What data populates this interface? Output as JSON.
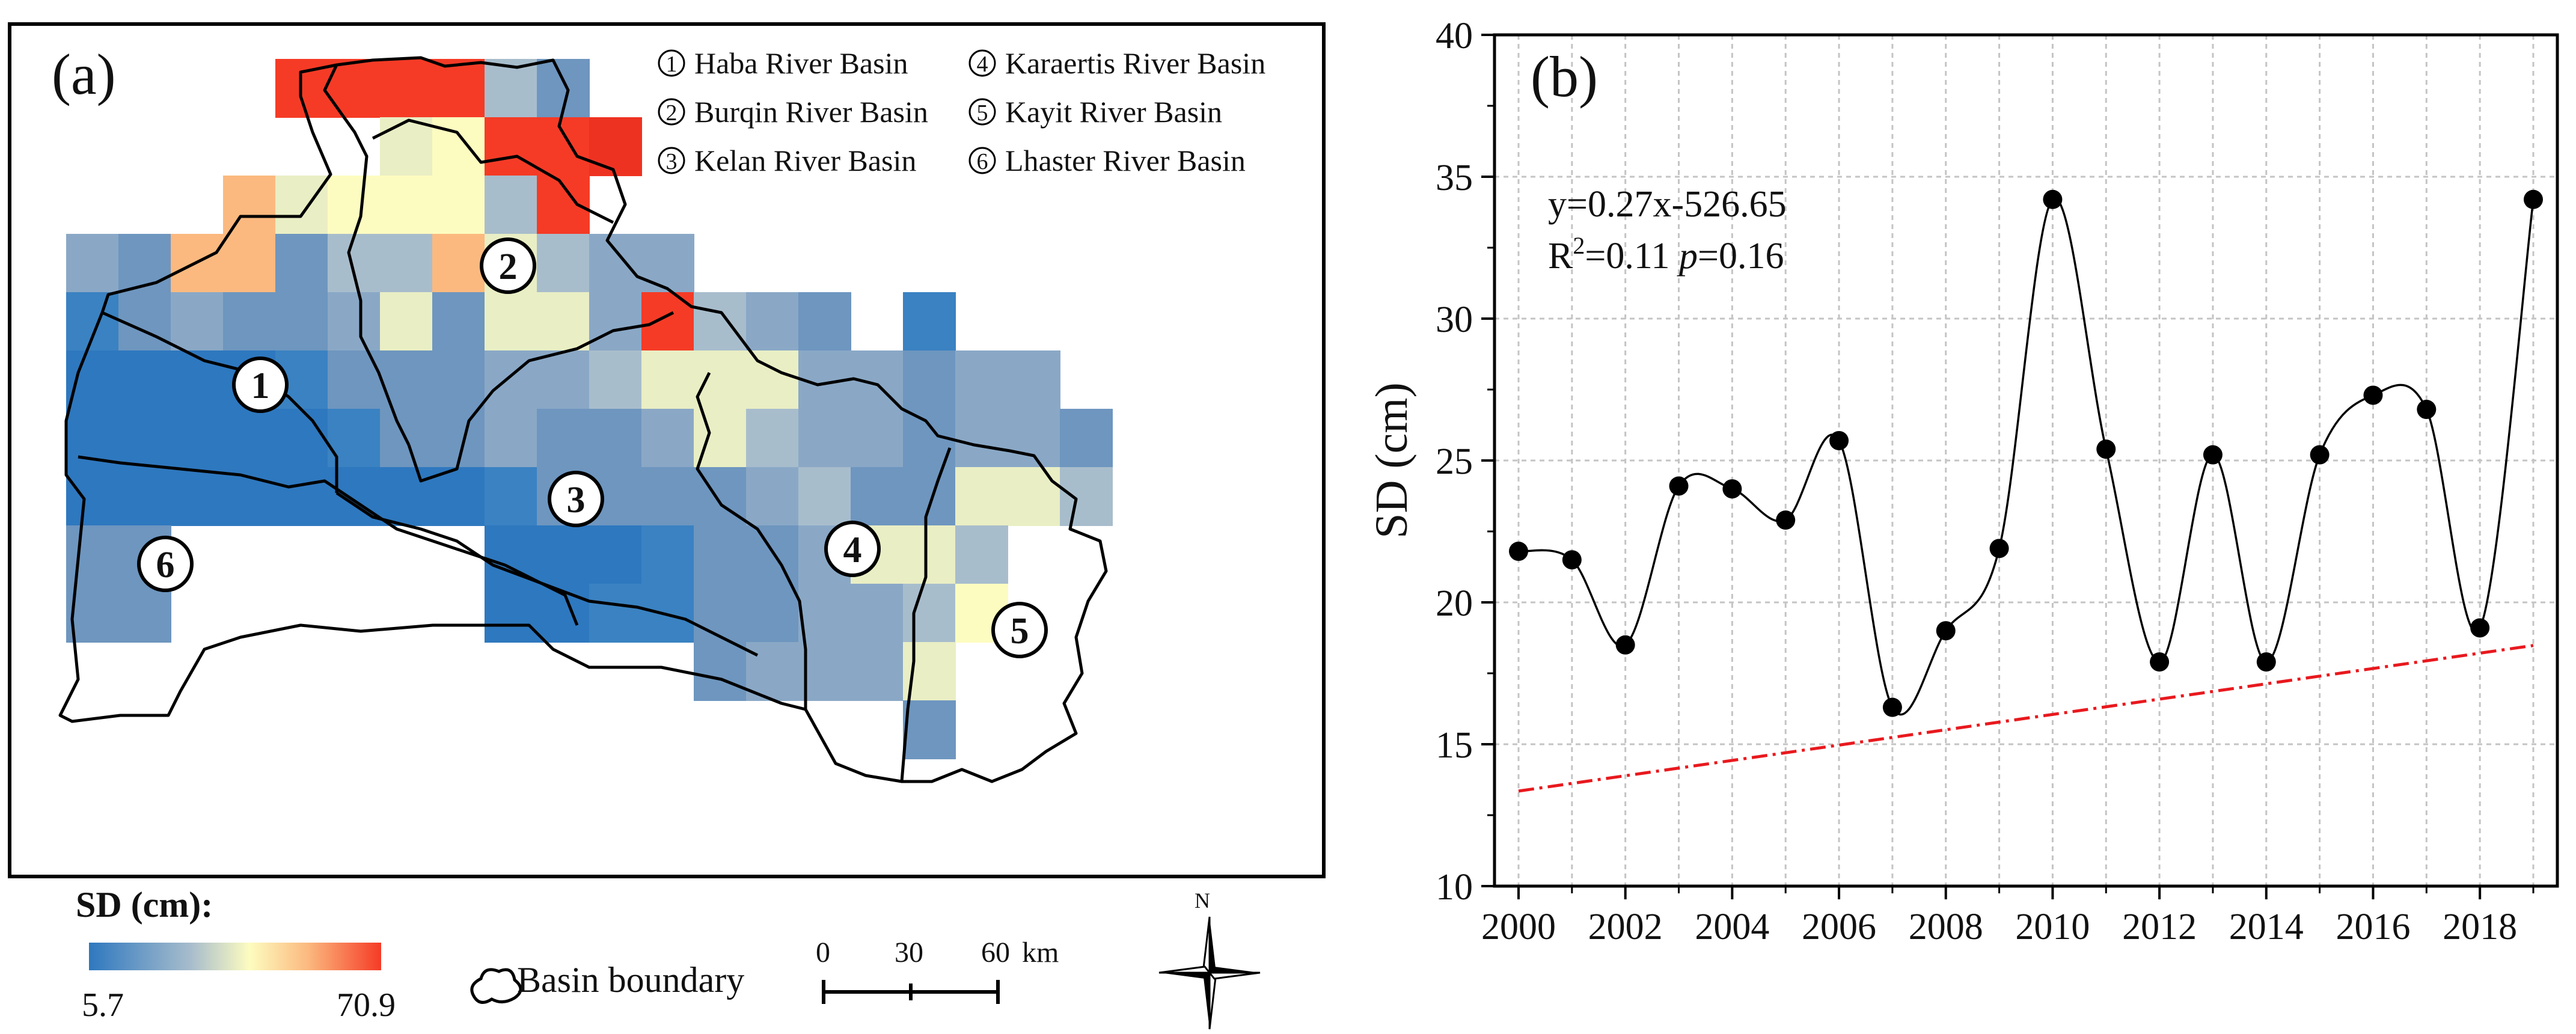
{
  "panel_a": {
    "label": "(a)",
    "legend": [
      {
        "num": "1",
        "name": "Haba River Basin"
      },
      {
        "num": "2",
        "name": "Burqin River Basin"
      },
      {
        "num": "3",
        "name": "Kelan River Basin"
      },
      {
        "num": "4",
        "name": "Karaertis River Basin"
      },
      {
        "num": "5",
        "name": "Kayit River Basin"
      },
      {
        "num": "6",
        "name": "Lhaster River Basin"
      }
    ],
    "colorbar": {
      "title": "SD (cm):",
      "min": "5.7",
      "max": "70.9",
      "colors": [
        "#2e78bf",
        "#a8bdcc",
        "#fdfcc0",
        "#fbb97f",
        "#f53b26"
      ]
    },
    "boundary_label": "Basin boundary",
    "scale": {
      "ticks": [
        "0",
        "30",
        "60"
      ],
      "unit": "km"
    },
    "north": "N"
  },
  "chart_data": {
    "type": "line",
    "panel_label": "(b)",
    "title": "",
    "xlabel": "",
    "ylabel": "SD (cm)",
    "x": [
      2000,
      2001,
      2002,
      2003,
      2004,
      2005,
      2006,
      2007,
      2008,
      2009,
      2010,
      2011,
      2012,
      2013,
      2014,
      2015,
      2016,
      2017,
      2018,
      2019
    ],
    "values": [
      21.8,
      21.5,
      18.5,
      24.1,
      24.0,
      22.9,
      25.7,
      16.3,
      19.0,
      21.9,
      34.2,
      25.4,
      17.9,
      25.2,
      17.9,
      25.2,
      27.3,
      26.8,
      19.1,
      34.2
    ],
    "xlim": [
      2000,
      2019
    ],
    "ylim": [
      10,
      40
    ],
    "xticks": [
      "2000",
      "2002",
      "2004",
      "2006",
      "2008",
      "2010",
      "2012",
      "2014",
      "2016",
      "2018"
    ],
    "yticks": [
      "10",
      "15",
      "20",
      "25",
      "30",
      "35",
      "40"
    ],
    "grid": true,
    "trend": {
      "slope": 0.27,
      "intercept": -526.65,
      "color": "#e8191e"
    },
    "annotations": {
      "equation": "y=0.27x-526.65",
      "r2_prefix": "R",
      "r2_sup": "2",
      "r2_value": "=0.11 ",
      "p_label": "p",
      "p_value": "=0.16"
    }
  }
}
